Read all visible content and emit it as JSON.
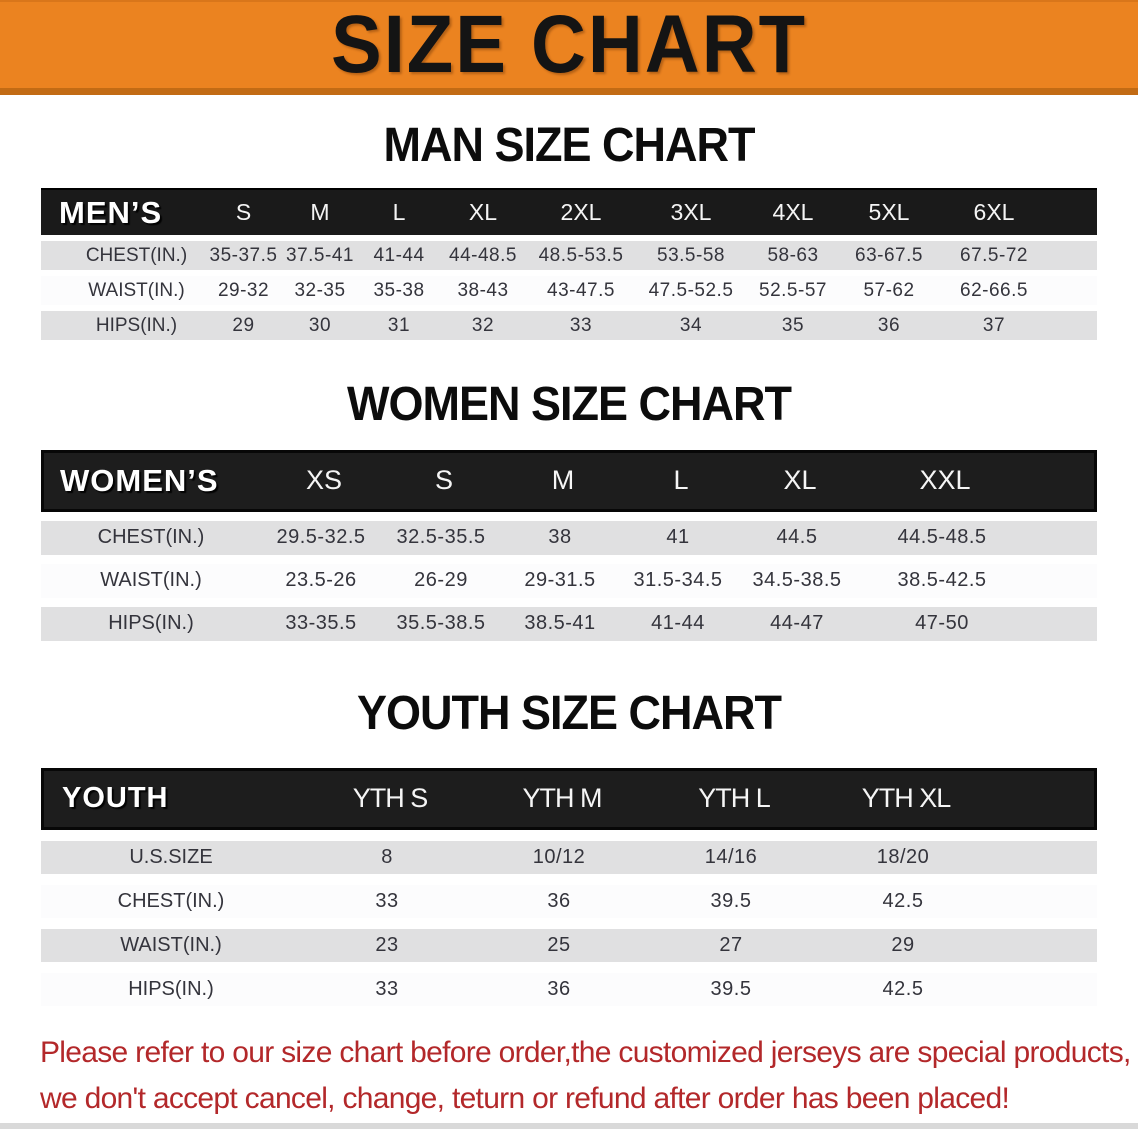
{
  "banner": {
    "title": "SIZE CHART"
  },
  "colors": {
    "banner_bg": "#EB8320",
    "banner_edge": "#C26B14",
    "header_bar_bg": "#1a1a1a",
    "row_gray": "#e0e0e1",
    "note_red": "#B3282A"
  },
  "sections": {
    "men": {
      "heading": "MAN SIZE CHART",
      "label": "MEN’S",
      "sizes": [
        "S",
        "M",
        "L",
        "XL",
        "2XL",
        "3XL",
        "4XL",
        "5XL",
        "6XL"
      ],
      "rows": [
        {
          "label": "CHEST(IN.)",
          "values": [
            "35-37.5",
            "37.5-41",
            "41-44",
            "44-48.5",
            "48.5-53.5",
            "53.5-58",
            "58-63",
            "63-67.5",
            "67.5-72"
          ]
        },
        {
          "label": "WAIST(IN.)",
          "values": [
            "29-32",
            "32-35",
            "35-38",
            "38-43",
            "43-47.5",
            "47.5-52.5",
            "52.5-57",
            "57-62",
            "62-66.5"
          ]
        },
        {
          "label": "HIPS(IN.)",
          "values": [
            "29",
            "30",
            "31",
            "32",
            "33",
            "34",
            "35",
            "36",
            "37"
          ]
        }
      ]
    },
    "women": {
      "heading": "WOMEN SIZE CHART",
      "label": "WOMEN’S",
      "sizes": [
        "XS",
        "S",
        "M",
        "L",
        "XL",
        "XXL"
      ],
      "rows": [
        {
          "label": "CHEST(IN.)",
          "values": [
            "29.5-32.5",
            "32.5-35.5",
            "38",
            "41",
            "44.5",
            "44.5-48.5"
          ]
        },
        {
          "label": "WAIST(IN.)",
          "values": [
            "23.5-26",
            "26-29",
            "29-31.5",
            "31.5-34.5",
            "34.5-38.5",
            "38.5-42.5"
          ]
        },
        {
          "label": "HIPS(IN.)",
          "values": [
            "33-35.5",
            "35.5-38.5",
            "38.5-41",
            "41-44",
            "44-47",
            "47-50"
          ]
        }
      ]
    },
    "youth": {
      "heading": "YOUTH SIZE CHART",
      "label": "YOUTH",
      "sizes": [
        "YTH S",
        "YTH M",
        "YTH L",
        "YTH XL"
      ],
      "rows": [
        {
          "label": "U.S.SIZE",
          "values": [
            "8",
            "10/12",
            "14/16",
            "18/20"
          ]
        },
        {
          "label": "CHEST(IN.)",
          "values": [
            "33",
            "36",
            "39.5",
            "42.5"
          ]
        },
        {
          "label": "WAIST(IN.)",
          "values": [
            "23",
            "25",
            "27",
            "29"
          ]
        },
        {
          "label": "HIPS(IN.)",
          "values": [
            "33",
            "36",
            "39.5",
            "42.5"
          ]
        }
      ]
    }
  },
  "footer": {
    "line1": "Please refer to our size chart before order,the customized jerseys are special products,",
    "line2": "we don't accept cancel, change, teturn or refund after order has been placed!"
  }
}
